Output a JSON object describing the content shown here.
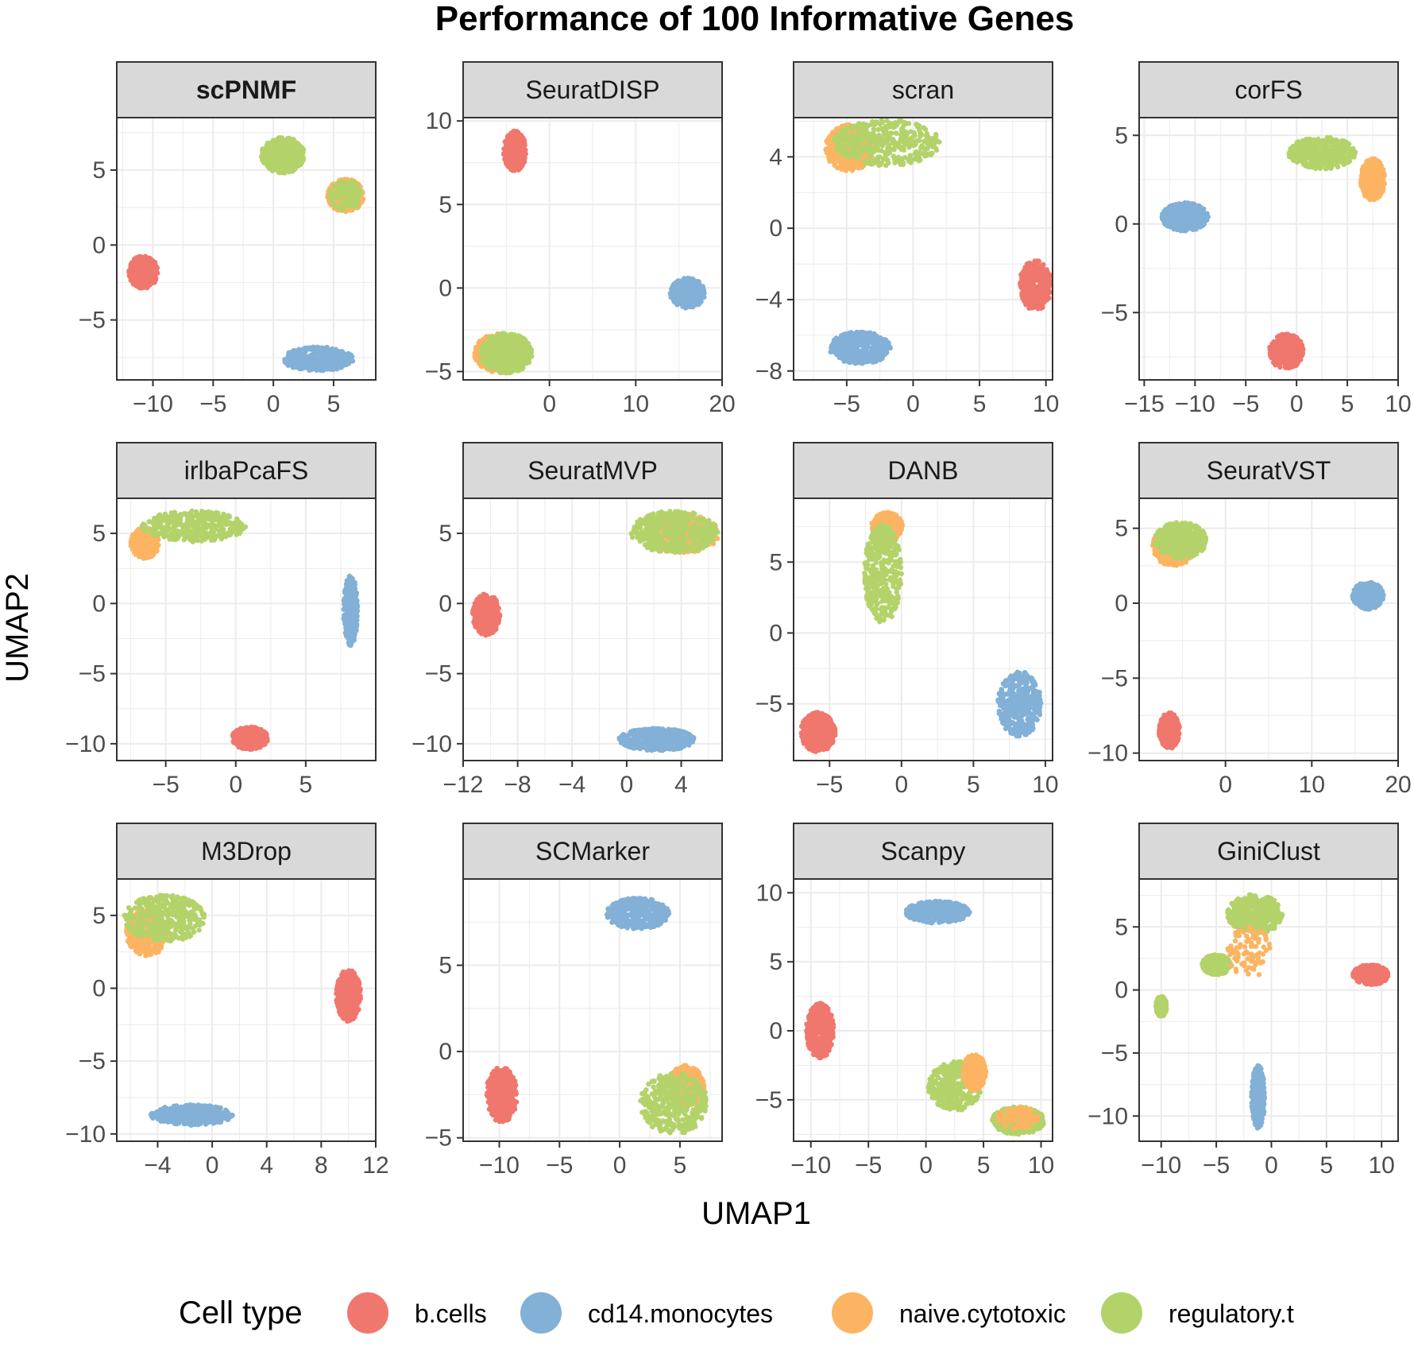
{
  "chart_data": {
    "type": "scatter",
    "title": "Performance of 100 Informative Genes",
    "xlabel": "UMAP1",
    "ylabel": "UMAP2",
    "legend": {
      "title": "Cell type",
      "position": "bottom",
      "entries": [
        {
          "name": "b.cells",
          "color": "#F0776D"
        },
        {
          "name": "cd14.monocytes",
          "color": "#82B0D6"
        },
        {
          "name": "naive.cytotoxic",
          "color": "#FCB462"
        },
        {
          "name": "regulatory.t",
          "color": "#B3D36A"
        }
      ]
    },
    "grid": true,
    "panels": [
      {
        "name": "scPNMF",
        "bold": true,
        "xlim": [
          -13,
          8.5
        ],
        "ylim": [
          -9,
          8.5
        ],
        "xticks": [
          -10,
          -5,
          0,
          5
        ],
        "xtick_labels": [
          "−10",
          "−5",
          "0",
          "5"
        ],
        "yticks": [
          -5,
          0,
          5
        ],
        "ytick_labels": [
          "−5",
          "0",
          "5"
        ],
        "clusters": [
          {
            "type": "b.cells",
            "cx": -10.8,
            "cy": -1.8,
            "rx": 1.2,
            "ry": 1.1
          },
          {
            "type": "cd14.monocytes",
            "cx": 3.7,
            "cy": -7.6,
            "rx": 3.0,
            "ry": 0.8
          },
          {
            "type": "regulatory.t",
            "cx": 0.8,
            "cy": 6.0,
            "rx": 1.8,
            "ry": 1.2
          },
          {
            "type": "naive.cytotoxic",
            "cx": 6.0,
            "cy": 3.3,
            "rx": 1.5,
            "ry": 1.1
          },
          {
            "type": "regulatory.t",
            "cx": 6.0,
            "cy": 3.3,
            "rx": 1.4,
            "ry": 1.0,
            "sparse": true
          }
        ]
      },
      {
        "name": "SeuratDISP",
        "xlim": [
          -10,
          20
        ],
        "ylim": [
          -5.5,
          10.2
        ],
        "xticks": [
          0,
          10,
          20
        ],
        "xtick_labels": [
          "0",
          "10",
          "20"
        ],
        "yticks": [
          -5,
          0,
          5,
          10
        ],
        "ytick_labels": [
          "−5",
          "0",
          "5",
          "10"
        ],
        "clusters": [
          {
            "type": "b.cells",
            "cx": -4.0,
            "cy": 8.2,
            "rx": 1.3,
            "ry": 1.2
          },
          {
            "type": "cd14.monocytes",
            "cx": 16.0,
            "cy": -0.3,
            "rx": 2.0,
            "ry": 0.9
          },
          {
            "type": "naive.cytotoxic",
            "cx": -5.5,
            "cy": -3.9,
            "rx": 3.2,
            "ry": 1.2
          },
          {
            "type": "regulatory.t",
            "cx": -5.0,
            "cy": -3.9,
            "rx": 3.0,
            "ry": 1.2
          }
        ]
      },
      {
        "name": "scran",
        "xlim": [
          -9,
          10.5
        ],
        "ylim": [
          -8.5,
          6.2
        ],
        "xticks": [
          -5,
          0,
          5,
          10
        ],
        "xtick_labels": [
          "−5",
          "0",
          "5",
          "10"
        ],
        "yticks": [
          -8,
          -4,
          0,
          4
        ],
        "ytick_labels": [
          "−8",
          "−4",
          "0",
          "4"
        ],
        "clusters": [
          {
            "type": "b.cells",
            "cx": 9.2,
            "cy": -3.2,
            "rx": 1.2,
            "ry": 1.4
          },
          {
            "type": "cd14.monocytes",
            "cx": -4.0,
            "cy": -6.7,
            "rx": 2.3,
            "ry": 0.9
          },
          {
            "type": "naive.cytotoxic",
            "cx": -4.8,
            "cy": 4.5,
            "rx": 1.8,
            "ry": 1.3
          },
          {
            "type": "regulatory.t",
            "cx": -2.0,
            "cy": 4.8,
            "rx": 4.0,
            "ry": 1.3
          }
        ]
      },
      {
        "name": "corFS",
        "xlim": [
          -15.5,
          10
        ],
        "ylim": [
          -8.8,
          6
        ],
        "xticks": [
          -15,
          -10,
          -5,
          0,
          5,
          10
        ],
        "xtick_labels": [
          "−15",
          "−10",
          "−5",
          "0",
          "5",
          "10"
        ],
        "yticks": [
          -5,
          0,
          5
        ],
        "ytick_labels": [
          "−5",
          "0",
          "5"
        ],
        "clusters": [
          {
            "type": "b.cells",
            "cx": -1.0,
            "cy": -7.2,
            "rx": 1.7,
            "ry": 1.0
          },
          {
            "type": "cd14.monocytes",
            "cx": -11.0,
            "cy": 0.4,
            "rx": 2.3,
            "ry": 0.8
          },
          {
            "type": "naive.cytotoxic",
            "cx": 7.5,
            "cy": 2.5,
            "rx": 1.2,
            "ry": 1.2
          },
          {
            "type": "regulatory.t",
            "cx": 2.5,
            "cy": 4.0,
            "rx": 3.3,
            "ry": 0.9
          }
        ]
      },
      {
        "name": "irlbaPcaFS",
        "xlim": [
          -8.5,
          10
        ],
        "ylim": [
          -11.2,
          7.5
        ],
        "xticks": [
          -5,
          0,
          5
        ],
        "xtick_labels": [
          "−5",
          "0",
          "5"
        ],
        "yticks": [
          -10,
          -5,
          0,
          5
        ],
        "ytick_labels": [
          "−10",
          "−5",
          "0",
          "5"
        ],
        "clusters": [
          {
            "type": "b.cells",
            "cx": 1.0,
            "cy": -9.6,
            "rx": 1.3,
            "ry": 0.8
          },
          {
            "type": "cd14.monocytes",
            "cx": 8.2,
            "cy": -0.5,
            "rx": 0.5,
            "ry": 2.5
          },
          {
            "type": "naive.cytotoxic",
            "cx": -6.5,
            "cy": 4.3,
            "rx": 1.0,
            "ry": 1.1
          },
          {
            "type": "regulatory.t",
            "cx": -3.0,
            "cy": 5.5,
            "rx": 3.7,
            "ry": 1.1
          }
        ]
      },
      {
        "name": "SeuratMVP",
        "xlim": [
          -12,
          7
        ],
        "ylim": [
          -11.2,
          7.5
        ],
        "xticks": [
          -12,
          -8,
          -4,
          0,
          4
        ],
        "xtick_labels": [
          "−12",
          "−8",
          "−4",
          "0",
          "4"
        ],
        "yticks": [
          -10,
          -5,
          0,
          5
        ],
        "ytick_labels": [
          "−10",
          "−5",
          "0",
          "5"
        ],
        "clusters": [
          {
            "type": "b.cells",
            "cx": -10.3,
            "cy": -0.8,
            "rx": 1.0,
            "ry": 1.5
          },
          {
            "type": "cd14.monocytes",
            "cx": 2.2,
            "cy": -9.7,
            "rx": 2.8,
            "ry": 0.8
          },
          {
            "type": "naive.cytotoxic",
            "cx": 4.0,
            "cy": 5.0,
            "rx": 2.8,
            "ry": 1.4
          },
          {
            "type": "regulatory.t",
            "cx": 3.5,
            "cy": 5.1,
            "rx": 3.2,
            "ry": 1.5
          }
        ]
      },
      {
        "name": "DANB",
        "xlim": [
          -7.5,
          10.5
        ],
        "ylim": [
          -9,
          9.5
        ],
        "xticks": [
          -5,
          0,
          5,
          10
        ],
        "xtick_labels": [
          "−5",
          "0",
          "5",
          "10"
        ],
        "yticks": [
          -5,
          0,
          5
        ],
        "ytick_labels": [
          "−5",
          "0",
          "5"
        ],
        "clusters": [
          {
            "type": "b.cells",
            "cx": -5.8,
            "cy": -7.0,
            "rx": 1.2,
            "ry": 1.4
          },
          {
            "type": "cd14.monocytes",
            "cx": 8.2,
            "cy": -5.0,
            "rx": 1.5,
            "ry": 2.3
          },
          {
            "type": "naive.cytotoxic",
            "cx": -1.0,
            "cy": 7.5,
            "rx": 1.1,
            "ry": 1.0
          },
          {
            "type": "regulatory.t",
            "cx": -1.3,
            "cy": 4.2,
            "rx": 1.3,
            "ry": 3.5
          }
        ]
      },
      {
        "name": "SeuratVST",
        "xlim": [
          -10,
          20
        ],
        "ylim": [
          -10.5,
          7
        ],
        "xticks": [
          0,
          10,
          20
        ],
        "xtick_labels": [
          "0",
          "10",
          "20"
        ],
        "yticks": [
          -10,
          -5,
          0,
          5
        ],
        "ytick_labels": [
          "−10",
          "−5",
          "0",
          "5"
        ],
        "clusters": [
          {
            "type": "b.cells",
            "cx": -6.5,
            "cy": -8.5,
            "rx": 1.2,
            "ry": 1.2
          },
          {
            "type": "cd14.monocytes",
            "cx": 16.5,
            "cy": 0.5,
            "rx": 1.8,
            "ry": 0.9
          },
          {
            "type": "naive.cytotoxic",
            "cx": -6.0,
            "cy": 3.8,
            "rx": 2.5,
            "ry": 1.3
          },
          {
            "type": "regulatory.t",
            "cx": -5.2,
            "cy": 4.2,
            "rx": 3.0,
            "ry": 1.2
          }
        ]
      },
      {
        "name": "M3Drop",
        "xlim": [
          -7,
          12
        ],
        "ylim": [
          -10.5,
          7.5
        ],
        "xticks": [
          -4,
          0,
          4,
          8,
          12
        ],
        "xtick_labels": [
          "−4",
          "0",
          "4",
          "8",
          "12"
        ],
        "yticks": [
          -10,
          -5,
          0,
          5
        ],
        "ytick_labels": [
          "−10",
          "−5",
          "0",
          "5"
        ],
        "clusters": [
          {
            "type": "b.cells",
            "cx": 10.0,
            "cy": -0.5,
            "rx": 0.9,
            "ry": 1.8
          },
          {
            "type": "cd14.monocytes",
            "cx": -1.5,
            "cy": -8.7,
            "rx": 3.0,
            "ry": 0.7
          },
          {
            "type": "naive.cytotoxic",
            "cx": -4.8,
            "cy": 3.8,
            "rx": 1.5,
            "ry": 1.6
          },
          {
            "type": "regulatory.t",
            "cx": -3.5,
            "cy": 4.8,
            "rx": 3.0,
            "ry": 1.6
          }
        ]
      },
      {
        "name": "SCMarker",
        "xlim": [
          -13,
          8.5
        ],
        "ylim": [
          -5.2,
          10
        ],
        "xticks": [
          -10,
          -5,
          0,
          5
        ],
        "xtick_labels": [
          "−10",
          "−5",
          "0",
          "5"
        ],
        "yticks": [
          -5,
          0,
          5
        ],
        "ytick_labels": [
          "−5",
          "0",
          "5"
        ],
        "clusters": [
          {
            "type": "b.cells",
            "cx": -9.8,
            "cy": -2.5,
            "rx": 1.3,
            "ry": 1.6
          },
          {
            "type": "cd14.monocytes",
            "cx": 1.5,
            "cy": 8.0,
            "rx": 2.6,
            "ry": 0.9
          },
          {
            "type": "naive.cytotoxic",
            "cx": 5.5,
            "cy": -2.0,
            "rx": 1.5,
            "ry": 1.2
          },
          {
            "type": "regulatory.t",
            "cx": 4.5,
            "cy": -3.0,
            "rx": 2.8,
            "ry": 1.8
          }
        ]
      },
      {
        "name": "Scanpy",
        "xlim": [
          -11.5,
          11
        ],
        "ylim": [
          -8,
          11
        ],
        "xticks": [
          -10,
          -5,
          0,
          5,
          10
        ],
        "xtick_labels": [
          "−10",
          "−5",
          "0",
          "5",
          "10"
        ],
        "yticks": [
          -5,
          0,
          5,
          10
        ],
        "ytick_labels": [
          "−5",
          "0",
          "5",
          "10"
        ],
        "clusters": [
          {
            "type": "b.cells",
            "cx": -9.2,
            "cy": 0.0,
            "rx": 1.2,
            "ry": 2.0
          },
          {
            "type": "cd14.monocytes",
            "cx": 1.0,
            "cy": 8.6,
            "rx": 2.8,
            "ry": 0.8
          },
          {
            "type": "regulatory.t",
            "cx": 2.5,
            "cy": -4.0,
            "rx": 2.3,
            "ry": 1.8
          },
          {
            "type": "naive.cytotoxic",
            "cx": 4.2,
            "cy": -3.0,
            "rx": 1.0,
            "ry": 1.3
          },
          {
            "type": "regulatory.t",
            "cx": 8.0,
            "cy": -6.5,
            "rx": 2.3,
            "ry": 1.0
          },
          {
            "type": "naive.cytotoxic",
            "cx": 8.0,
            "cy": -6.3,
            "rx": 1.8,
            "ry": 0.8,
            "sparse": true
          }
        ]
      },
      {
        "name": "GiniClust",
        "xlim": [
          -12,
          11.5
        ],
        "ylim": [
          -12,
          8.8
        ],
        "xticks": [
          -10,
          -5,
          0,
          5,
          10
        ],
        "xtick_labels": [
          "−10",
          "−5",
          "0",
          "5",
          "10"
        ],
        "yticks": [
          -10,
          -5,
          0,
          5
        ],
        "ytick_labels": [
          "−10",
          "−5",
          "0",
          "5"
        ],
        "clusters": [
          {
            "type": "b.cells",
            "cx": 9.0,
            "cy": 1.2,
            "rx": 1.6,
            "ry": 0.8
          },
          {
            "type": "cd14.monocytes",
            "cx": -1.2,
            "cy": -8.5,
            "rx": 0.6,
            "ry": 2.5
          },
          {
            "type": "regulatory.t",
            "cx": -1.5,
            "cy": 6.0,
            "rx": 2.5,
            "ry": 1.6
          },
          {
            "type": "regulatory.t",
            "cx": -5.0,
            "cy": 2.0,
            "rx": 1.3,
            "ry": 0.8
          },
          {
            "type": "naive.cytotoxic",
            "cx": -2.0,
            "cy": 3.0,
            "rx": 2.0,
            "ry": 2.0,
            "sparse": true
          },
          {
            "type": "regulatory.t",
            "cx": -10.0,
            "cy": -1.3,
            "rx": 0.5,
            "ry": 0.8
          }
        ]
      }
    ]
  }
}
